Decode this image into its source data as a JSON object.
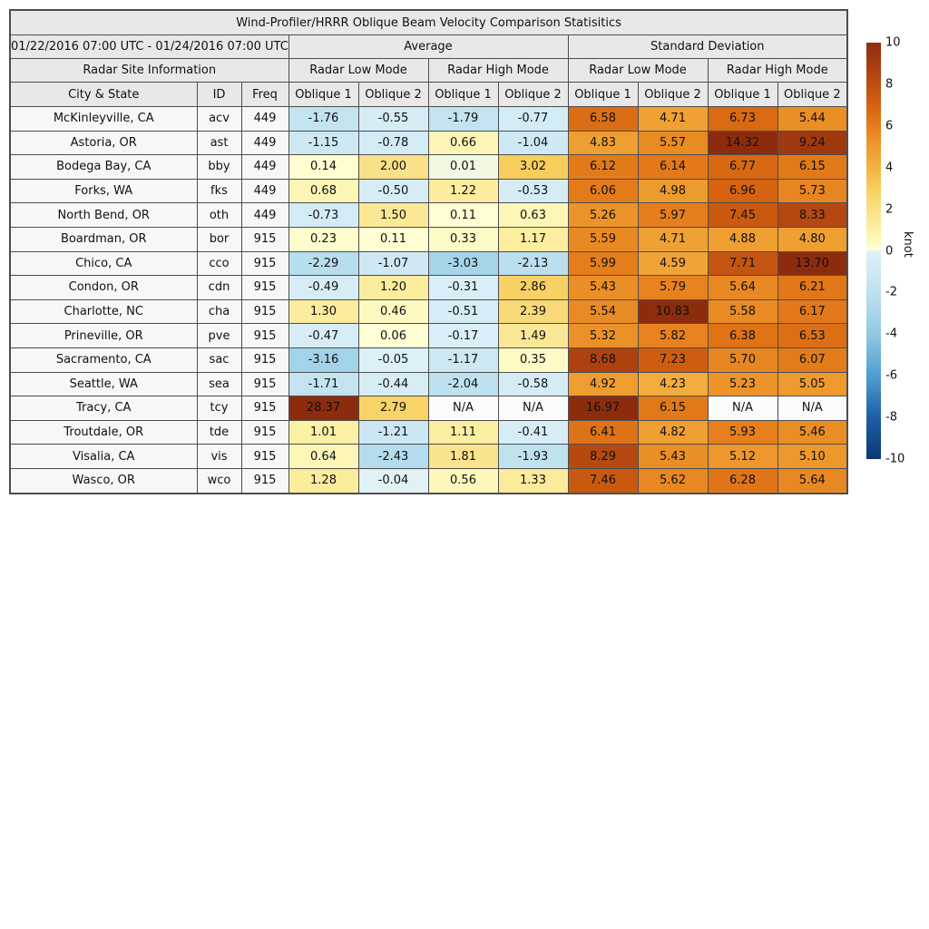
{
  "chart_data": {
    "type": "heatmap",
    "title": "Wind-Profiler/HRRR Oblique Beam Velocity Comparison Statisitics",
    "period": "01/22/2016 07:00 UTC - 01/24/2016 07:00 UTC",
    "col_groups": {
      "average": "Average",
      "std": "Standard Deviation"
    },
    "site_info_header": "Radar Site Information",
    "mode_headers": [
      "Radar Low Mode",
      "Radar High Mode",
      "Radar Low Mode",
      "Radar High Mode"
    ],
    "columns": [
      "City & State",
      "ID",
      "Freq",
      "Oblique 1",
      "Oblique 2",
      "Oblique 1",
      "Oblique 2",
      "Oblique 1",
      "Oblique 2",
      "Oblique 1",
      "Oblique 2"
    ],
    "rows": [
      {
        "city": "McKinleyville, CA",
        "id": "acv",
        "freq": "449",
        "values": [
          "-1.76",
          "-0.55",
          "-1.79",
          "-0.77",
          "6.58",
          "4.71",
          "6.73",
          "5.44"
        ]
      },
      {
        "city": "Astoria, OR",
        "id": "ast",
        "freq": "449",
        "values": [
          "-1.15",
          "-0.78",
          "0.66",
          "-1.04",
          "4.83",
          "5.57",
          "14.32",
          "9.24"
        ]
      },
      {
        "city": "Bodega Bay, CA",
        "id": "bby",
        "freq": "449",
        "values": [
          "0.14",
          "2.00",
          "0.01",
          "3.02",
          "6.12",
          "6.14",
          "6.77",
          "6.15"
        ]
      },
      {
        "city": "Forks, WA",
        "id": "fks",
        "freq": "449",
        "values": [
          "0.68",
          "-0.50",
          "1.22",
          "-0.53",
          "6.06",
          "4.98",
          "6.96",
          "5.73"
        ]
      },
      {
        "city": "North Bend, OR",
        "id": "oth",
        "freq": "449",
        "values": [
          "-0.73",
          "1.50",
          "0.11",
          "0.63",
          "5.26",
          "5.97",
          "7.45",
          "8.33"
        ]
      },
      {
        "city": "Boardman, OR",
        "id": "bor",
        "freq": "915",
        "values": [
          "0.23",
          "0.11",
          "0.33",
          "1.17",
          "5.59",
          "4.71",
          "4.88",
          "4.80"
        ]
      },
      {
        "city": "Chico, CA",
        "id": "cco",
        "freq": "915",
        "values": [
          "-2.29",
          "-1.07",
          "-3.03",
          "-2.13",
          "5.99",
          "4.59",
          "7.71",
          "13.70"
        ]
      },
      {
        "city": "Condon, OR",
        "id": "cdn",
        "freq": "915",
        "values": [
          "-0.49",
          "1.20",
          "-0.31",
          "2.86",
          "5.43",
          "5.79",
          "5.64",
          "6.21"
        ]
      },
      {
        "city": "Charlotte, NC",
        "id": "cha",
        "freq": "915",
        "values": [
          "1.30",
          "0.46",
          "-0.51",
          "2.39",
          "5.54",
          "10.83",
          "5.58",
          "6.17"
        ]
      },
      {
        "city": "Prineville, OR",
        "id": "pve",
        "freq": "915",
        "values": [
          "-0.47",
          "0.06",
          "-0.17",
          "1.49",
          "5.32",
          "5.82",
          "6.38",
          "6.53"
        ]
      },
      {
        "city": "Sacramento, CA",
        "id": "sac",
        "freq": "915",
        "values": [
          "-3.16",
          "-0.05",
          "-1.17",
          "0.35",
          "8.68",
          "7.23",
          "5.70",
          "6.07"
        ]
      },
      {
        "city": "Seattle, WA",
        "id": "sea",
        "freq": "915",
        "values": [
          "-1.71",
          "-0.44",
          "-2.04",
          "-0.58",
          "4.92",
          "4.23",
          "5.23",
          "5.05"
        ]
      },
      {
        "city": "Tracy, CA",
        "id": "tcy",
        "freq": "915",
        "values": [
          "28.37",
          "2.79",
          "N/A",
          "N/A",
          "16.97",
          "6.15",
          "N/A",
          "N/A"
        ]
      },
      {
        "city": "Troutdale, OR",
        "id": "tde",
        "freq": "915",
        "values": [
          "1.01",
          "-1.21",
          "1.11",
          "-0.41",
          "6.41",
          "4.82",
          "5.93",
          "5.46"
        ]
      },
      {
        "city": "Visalia, CA",
        "id": "vis",
        "freq": "915",
        "values": [
          "0.64",
          "-2.43",
          "1.81",
          "-1.93",
          "8.29",
          "5.43",
          "5.12",
          "5.10"
        ]
      },
      {
        "city": "Wasco, OR",
        "id": "wco",
        "freq": "915",
        "values": [
          "1.28",
          "-0.04",
          "0.56",
          "1.33",
          "7.46",
          "5.62",
          "6.28",
          "5.64"
        ]
      }
    ],
    "colorbar": {
      "label": "knot",
      "min": -10,
      "max": 10,
      "ticks": [
        10,
        8,
        6,
        4,
        2,
        0,
        -2,
        -4,
        -6,
        -8,
        -10
      ],
      "colormap_stops": [
        [
          -10,
          [
            12,
            56,
            115
          ]
        ],
        [
          -8,
          [
            29,
            95,
            168
          ]
        ],
        [
          -6,
          [
            79,
            159,
            208
          ]
        ],
        [
          -4,
          [
            143,
            200,
            226
          ]
        ],
        [
          -3,
          [
            167,
            213,
            233
          ]
        ],
        [
          -2,
          [
            190,
            225,
            239
          ]
        ],
        [
          -1,
          [
            208,
            233,
            244
          ]
        ],
        [
          -0.05,
          [
            220,
            240,
            247
          ]
        ],
        [
          0.05,
          [
            255,
            255,
            214
          ]
        ],
        [
          1,
          [
            252,
            240,
            164
          ]
        ],
        [
          2,
          [
            250,
            224,
            136
          ]
        ],
        [
          3,
          [
            247,
            207,
            94
          ]
        ],
        [
          4,
          [
            244,
            177,
            67
          ]
        ],
        [
          5,
          [
            238,
            155,
            46
          ]
        ],
        [
          6,
          [
            229,
            125,
            27
          ]
        ],
        [
          7,
          [
            212,
            98,
            15
          ]
        ],
        [
          8,
          [
            189,
            78,
            16
          ]
        ],
        [
          9,
          [
            166,
            60,
            16
          ]
        ],
        [
          10,
          [
            141,
            44,
            13
          ]
        ]
      ]
    }
  }
}
